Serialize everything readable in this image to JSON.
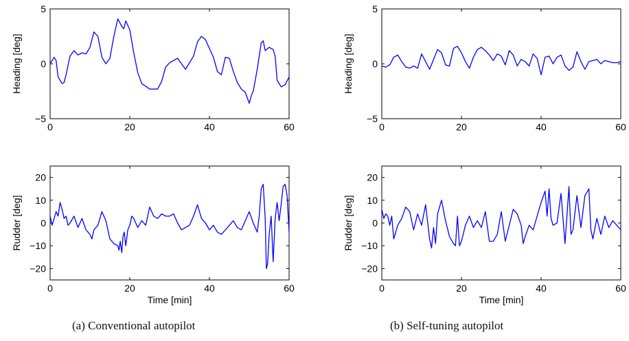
{
  "captions": {
    "left": "(a) Conventional autopilot",
    "right": "(b) Self-tuning autopilot"
  },
  "chart_data": [
    {
      "type": "line",
      "panel": "left-top",
      "title": "",
      "xlabel": "",
      "ylabel": "Heading [deg]",
      "xlim": [
        0,
        60
      ],
      "ylim": [
        -5,
        5
      ],
      "xticks": [
        0,
        20,
        40,
        60
      ],
      "yticks": [
        -5,
        0,
        5
      ],
      "grid": false,
      "color": "#0000ff",
      "x": [
        0,
        1,
        1.5,
        2,
        3,
        3.5,
        4,
        5,
        6,
        7,
        8,
        9,
        10,
        11,
        12,
        13,
        14,
        15,
        16,
        17,
        18,
        18.5,
        19,
        20,
        21,
        22,
        23,
        25,
        27,
        28,
        29,
        30,
        32,
        34,
        36,
        37,
        38,
        39,
        40,
        41,
        42,
        43,
        44,
        45,
        46,
        47,
        48,
        49,
        50,
        50.5,
        51,
        52,
        53,
        53.5,
        54,
        55,
        56,
        56.5,
        57,
        58,
        59,
        60
      ],
      "y": [
        0,
        0.6,
        0.3,
        -1.2,
        -1.8,
        -1.7,
        -1,
        0.7,
        1.2,
        0.8,
        1,
        0.9,
        1.5,
        2.9,
        2.5,
        0.6,
        0,
        0.5,
        2.5,
        4.1,
        3.4,
        3.2,
        3.9,
        3.1,
        1,
        -0.8,
        -1.8,
        -2.3,
        -2.3,
        -1.6,
        -0.3,
        0.1,
        0.5,
        -0.5,
        0.7,
        2,
        2.5,
        2.2,
        1.4,
        0.6,
        -0.7,
        -1,
        0.6,
        0.5,
        -0.7,
        -1.7,
        -2.3,
        -2.6,
        -3.6,
        -2.9,
        -2.5,
        -0.5,
        1.9,
        2.1,
        1.2,
        1.5,
        1.3,
        0.7,
        -1.5,
        -2.1,
        -1.9,
        -1.2
      ]
    },
    {
      "type": "line",
      "panel": "left-bottom",
      "title": "",
      "xlabel": "Time [min]",
      "ylabel": "Rudder [deg]",
      "xlim": [
        0,
        60
      ],
      "ylim": [
        -25,
        25
      ],
      "xticks": [
        0,
        20,
        40,
        60
      ],
      "yticks": [
        -20,
        -10,
        0,
        10,
        20
      ],
      "grid": false,
      "color": "#0000ff",
      "x": [
        0,
        0.5,
        1,
        1.5,
        2,
        2.5,
        3,
        3.5,
        4,
        4.5,
        5,
        6,
        7,
        8,
        9,
        10,
        10.5,
        11,
        12,
        13,
        14,
        15,
        16,
        17,
        17.3,
        17.6,
        18,
        18.3,
        18.6,
        19,
        19.5,
        20,
        20.5,
        21,
        22,
        23,
        24,
        25,
        26,
        27,
        28,
        29,
        30,
        31,
        32,
        33,
        34,
        35,
        36,
        37,
        38,
        39,
        40,
        41,
        42,
        43,
        44,
        45,
        46,
        47,
        48,
        49,
        50,
        51,
        52,
        52.5,
        53,
        53.5,
        54,
        54.3,
        54.6,
        55,
        55.5,
        56,
        56.5,
        57,
        57.5,
        58,
        58.5,
        59,
        59.5,
        60
      ],
      "y": [
        3,
        -1,
        2,
        5,
        3,
        9,
        6,
        2,
        3,
        -1,
        0,
        3,
        -2,
        2,
        -3,
        -5,
        -7,
        -3,
        -1,
        5,
        1,
        -7,
        -9,
        -10,
        -12,
        -8,
        -13,
        -6,
        -4,
        -10,
        -3,
        -1,
        3,
        2,
        -2,
        1,
        -1,
        7,
        3,
        2,
        4,
        3,
        3,
        4,
        0,
        -3,
        -2,
        -1,
        3,
        8,
        2,
        0,
        -3,
        -1,
        -4,
        -5,
        -3,
        -1,
        1,
        -2,
        -3,
        1,
        5,
        0,
        -4,
        3,
        15,
        17,
        2,
        -20,
        -18,
        -5,
        3,
        -17,
        2,
        9,
        1,
        8,
        16,
        17,
        12,
        -4
      ]
    },
    {
      "type": "line",
      "panel": "right-top",
      "title": "",
      "xlabel": "",
      "ylabel": "Heading [deg]",
      "xlim": [
        0,
        60
      ],
      "ylim": [
        -5,
        5
      ],
      "xticks": [
        0,
        20,
        40,
        60
      ],
      "yticks": [
        -5,
        0,
        5
      ],
      "grid": false,
      "color": "#0000ff",
      "x": [
        0,
        1,
        2,
        3,
        4,
        5,
        6,
        7,
        8,
        9,
        10,
        11,
        12,
        13,
        14,
        15,
        16,
        17,
        18,
        19,
        20,
        21,
        22,
        23,
        24,
        25,
        26,
        27,
        28,
        29,
        30,
        31,
        32,
        33,
        34,
        35,
        36,
        37,
        38,
        39,
        40,
        41,
        42,
        43,
        44,
        45,
        46,
        47,
        48,
        49,
        50,
        51,
        52,
        53,
        54,
        55,
        56,
        57,
        58,
        59,
        60
      ],
      "y": [
        -0.2,
        -0.3,
        -0.1,
        0.6,
        0.8,
        0.2,
        -0.3,
        -0.4,
        -0.2,
        -0.4,
        0.9,
        0.2,
        -0.5,
        0.4,
        1.3,
        1,
        -0.1,
        -0.2,
        1.4,
        1.6,
        1,
        0.2,
        -0.4,
        0.6,
        1.3,
        1.5,
        1.2,
        0.8,
        0.3,
        0.9,
        0.7,
        -0.1,
        1.2,
        0.8,
        -0.2,
        0.4,
        0.2,
        -0.2,
        0.9,
        0.5,
        -1,
        0.6,
        0.7,
        0,
        0.6,
        0.8,
        -0.2,
        -0.6,
        -0.3,
        1.1,
        0.2,
        -0.5,
        0.2,
        0.3,
        0.4,
        0,
        0.3,
        0.2,
        0.1,
        0.1,
        0.2
      ]
    },
    {
      "type": "line",
      "panel": "right-bottom",
      "title": "",
      "xlabel": "Time [min]",
      "ylabel": "Rudder [deg]",
      "xlim": [
        0,
        60
      ],
      "ylim": [
        -25,
        25
      ],
      "xticks": [
        0,
        20,
        40,
        60
      ],
      "yticks": [
        -20,
        -10,
        0,
        10,
        20
      ],
      "grid": false,
      "color": "#0000ff",
      "x": [
        0,
        0.5,
        1,
        1.5,
        2,
        2.5,
        3,
        3.5,
        4,
        5,
        6,
        7,
        8,
        9,
        10,
        11,
        12,
        12.5,
        13,
        13.5,
        14,
        15,
        16,
        17,
        18,
        18.5,
        19,
        19.5,
        20,
        21,
        22,
        23,
        24,
        25,
        26,
        27,
        28,
        29,
        30,
        31,
        32,
        33,
        34,
        35,
        35.5,
        36,
        37,
        38,
        39,
        40,
        41,
        41.5,
        42,
        42.5,
        43,
        44,
        45,
        46,
        47,
        47.5,
        48,
        49,
        50,
        51,
        52,
        52.5,
        53,
        54,
        55,
        56,
        57,
        58,
        59,
        60
      ],
      "y": [
        6,
        2,
        4,
        3,
        -1,
        3,
        -7,
        -4,
        -1,
        2,
        7,
        5,
        -3,
        4,
        -1,
        8,
        -7,
        -11,
        -2,
        -9,
        4,
        10,
        1,
        -6,
        -9,
        -10,
        3,
        -10,
        -8,
        -1,
        3,
        -2,
        1,
        -2,
        5,
        -8,
        -8,
        -5,
        5,
        -8,
        -1,
        6,
        4,
        -1,
        -9,
        -6,
        -1,
        -3,
        3,
        9,
        14,
        3,
        15,
        2,
        -1,
        0,
        13,
        -9,
        16,
        -5,
        -3,
        12,
        -2,
        12,
        15,
        -3,
        -7,
        2,
        -5,
        3,
        -2,
        1,
        -1,
        -3
      ]
    }
  ]
}
